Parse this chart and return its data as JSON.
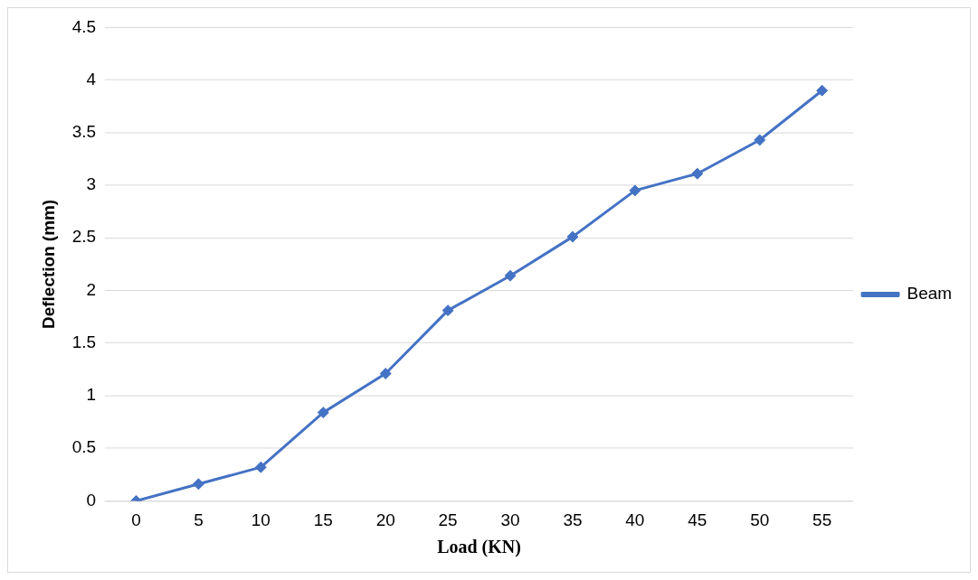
{
  "chart_data": {
    "type": "line",
    "xlabel": "Load (KN)",
    "ylabel": "Deflection (mm)",
    "categories": [
      "0",
      "5",
      "10",
      "15",
      "20",
      "25",
      "30",
      "35",
      "40",
      "45",
      "50",
      "55"
    ],
    "series": [
      {
        "name": "Beam",
        "color": "#4472c4",
        "values": [
          0,
          0.16,
          0.32,
          0.84,
          1.21,
          1.81,
          2.14,
          2.51,
          2.95,
          3.11,
          3.43,
          3.9
        ]
      }
    ],
    "ylim": [
      0,
      4.5
    ],
    "yticks": [
      0,
      0.5,
      1,
      1.5,
      2,
      2.5,
      3,
      3.5,
      4,
      4.5
    ],
    "grid": "y",
    "legend": "right",
    "marker": "diamond",
    "line_style": "solid"
  }
}
